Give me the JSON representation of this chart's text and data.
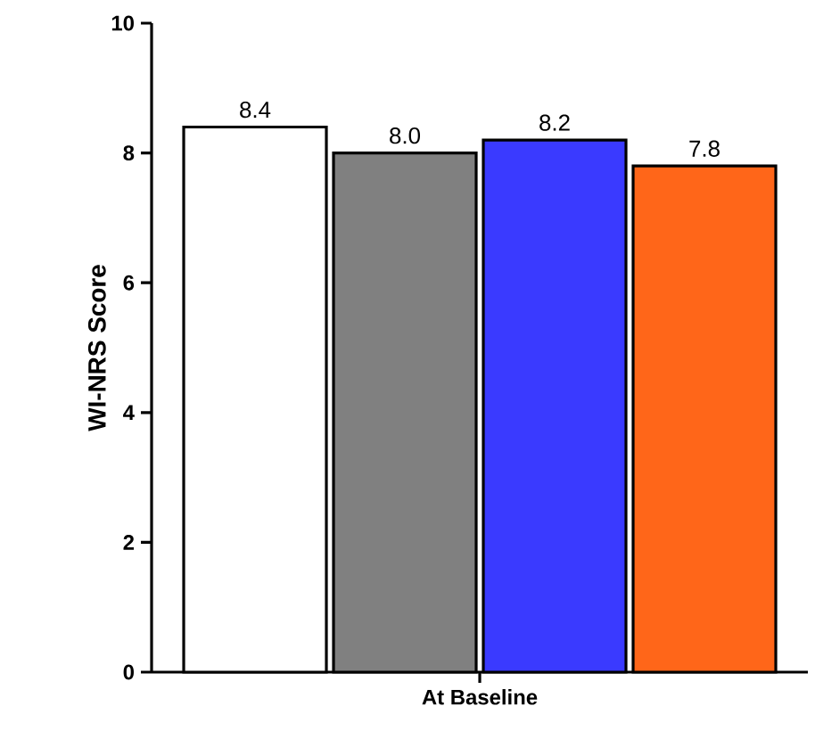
{
  "chart_data": {
    "type": "bar",
    "ylabel": "WI-NRS Score",
    "categories": [
      "At Baseline"
    ],
    "series": [
      {
        "color": "#ffffff",
        "values": [
          8.4
        ],
        "value_labels": [
          "8.4"
        ]
      },
      {
        "color": "#808080",
        "values": [
          8.0
        ],
        "value_labels": [
          "8.0"
        ]
      },
      {
        "color": "#3a3aff",
        "values": [
          8.2
        ],
        "value_labels": [
          "8.2"
        ]
      },
      {
        "color": "#ff6619",
        "values": [
          7.8
        ],
        "value_labels": [
          "7.8"
        ]
      }
    ],
    "ylim": [
      0,
      10
    ],
    "yticks": [
      0,
      2,
      4,
      6,
      8,
      10
    ]
  }
}
